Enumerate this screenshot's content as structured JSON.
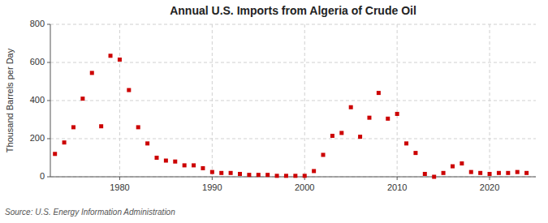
{
  "chart_data": {
    "type": "scatter",
    "title": "Annual U.S. Imports from Algeria of Crude Oil",
    "ylabel": "Thousand Barrels per Day",
    "source": "Source: U.S. Energy Information Administration",
    "color": "#cc0000",
    "marker": "square",
    "grid": true,
    "ylim": [
      0,
      800
    ],
    "yticks": [
      0,
      200,
      400,
      600,
      800
    ],
    "xlim": [
      1972.5,
      2025
    ],
    "xticks": [
      1980,
      1990,
      2000,
      2010,
      2020
    ],
    "x": [
      1973,
      1974,
      1975,
      1976,
      1977,
      1978,
      1979,
      1980,
      1981,
      1982,
      1983,
      1984,
      1985,
      1986,
      1987,
      1988,
      1989,
      1990,
      1991,
      1992,
      1993,
      1994,
      1995,
      1996,
      1997,
      1998,
      1999,
      2000,
      2001,
      2002,
      2003,
      2004,
      2005,
      2006,
      2007,
      2008,
      2009,
      2010,
      2011,
      2012,
      2013,
      2014,
      2015,
      2016,
      2017,
      2018,
      2019,
      2020,
      2021,
      2022,
      2023,
      2024
    ],
    "values": [
      120,
      180,
      260,
      410,
      545,
      265,
      635,
      615,
      455,
      260,
      175,
      100,
      85,
      80,
      60,
      60,
      45,
      25,
      20,
      20,
      15,
      10,
      10,
      10,
      5,
      5,
      5,
      5,
      30,
      115,
      215,
      230,
      365,
      210,
      310,
      440,
      305,
      330,
      175,
      125,
      15,
      0,
      20,
      55,
      70,
      25,
      20,
      15,
      20,
      20,
      25,
      20
    ]
  }
}
